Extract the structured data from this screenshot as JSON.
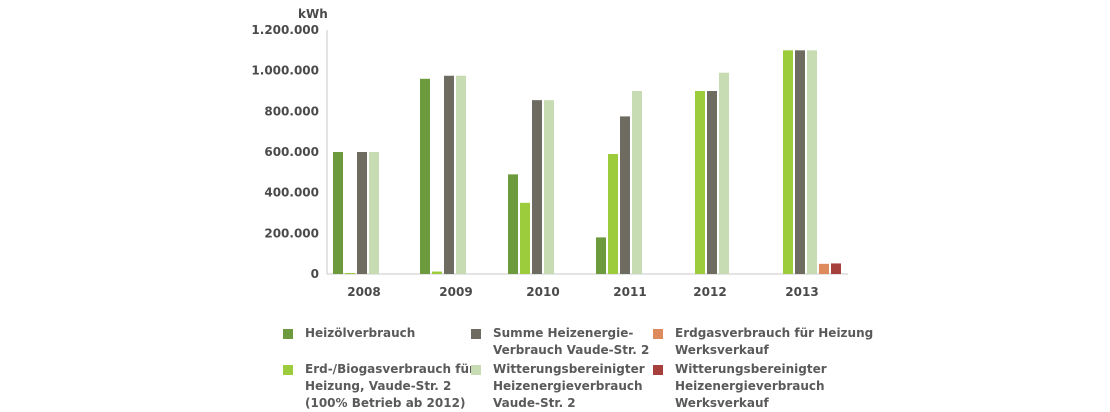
{
  "chart_data": {
    "type": "bar",
    "unit": "kWh",
    "categories": [
      "2008",
      "2009",
      "2010",
      "2011",
      "2012",
      "2013"
    ],
    "ylim": [
      0,
      1200000
    ],
    "yticks": [
      "0",
      "200.000",
      "400.000",
      "600.000",
      "800.000",
      "1.000.000",
      "1.200.000"
    ],
    "ytick_values": [
      0,
      200000,
      400000,
      600000,
      800000,
      1000000,
      1200000
    ],
    "grid": false,
    "legend_position": "bottom",
    "series": [
      {
        "name": "Heizölverbrauch",
        "color": "#6c9a3c",
        "values": [
          600000,
          960000,
          490000,
          180000,
          0,
          0
        ]
      },
      {
        "name": "Erd-/Biogasverbrauch für\nHeizung, Vaude-Str. 2\n(100% Betrieb ab 2012)",
        "color": "#9ccb3b",
        "values": [
          5000,
          12000,
          350000,
          590000,
          900000,
          1100000
        ]
      },
      {
        "name": "Summe Heizenergie-\nVerbrauch Vaude-Str. 2",
        "color": "#6e6b60",
        "values": [
          600000,
          975000,
          855000,
          775000,
          900000,
          1100000
        ]
      },
      {
        "name": "Witterungsbereinigter\nHeizenergieverbrauch\nVaude-Str. 2",
        "color": "#c7dcb2",
        "values": [
          600000,
          975000,
          855000,
          900000,
          990000,
          1100000
        ]
      },
      {
        "name": "Erdgasverbrauch für Heizung\nWerksverkauf",
        "color": "#de8a5c",
        "values": [
          0,
          0,
          0,
          0,
          0,
          50000
        ]
      },
      {
        "name": "Witterungsbereinigter\nHeizenergieverbrauch\nWerksverkauf",
        "color": "#a5403d",
        "values": [
          0,
          0,
          0,
          0,
          0,
          52000
        ]
      }
    ]
  }
}
